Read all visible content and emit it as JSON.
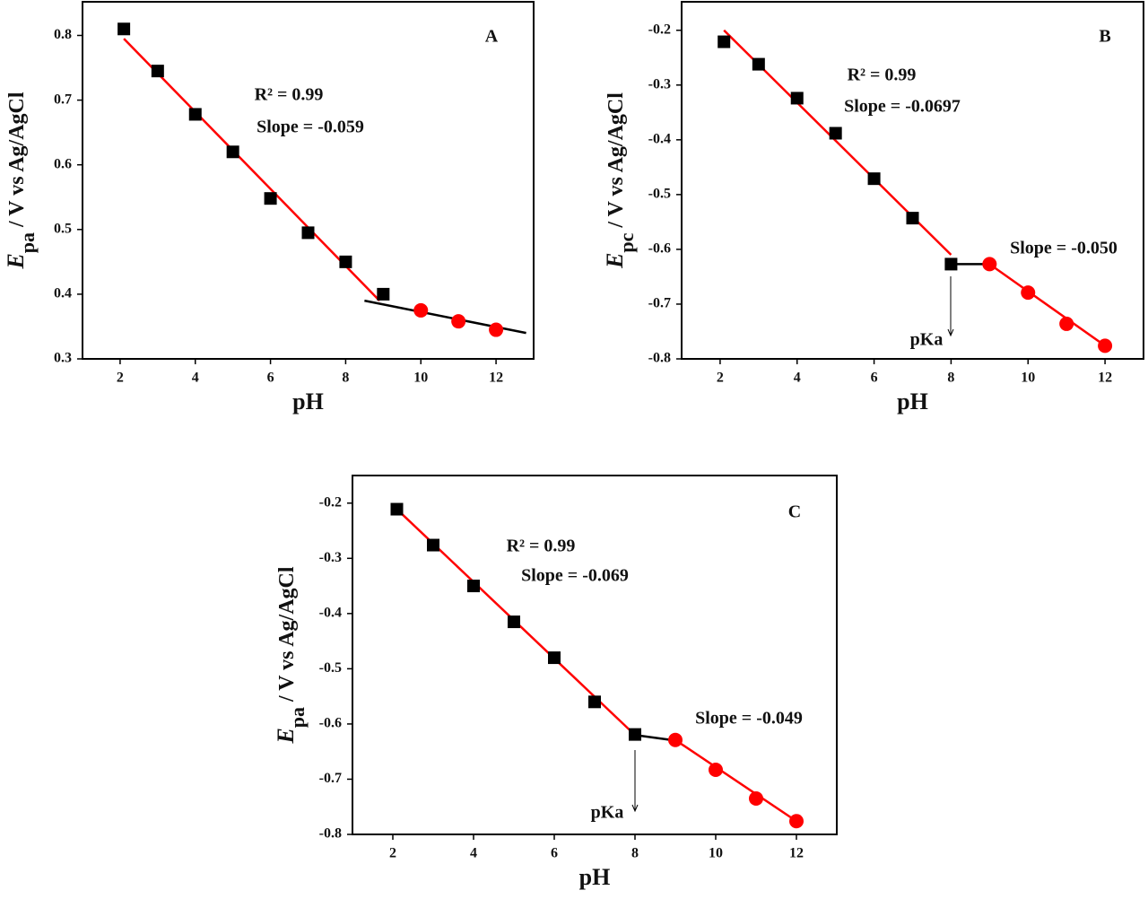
{
  "chart_data": [
    {
      "type": "scatter",
      "panel": "A",
      "x_label": "pH",
      "y_label": {
        "symbol": "E",
        "subscript": "pa",
        "text": " / V vs Ag/AgCl"
      },
      "xlim": [
        1,
        13
      ],
      "ylim": [
        0.3,
        0.852
      ],
      "xticks": [
        2,
        4,
        6,
        8,
        10,
        12
      ],
      "yticks": [
        0.3,
        0.4,
        0.5,
        0.6,
        0.7,
        0.8
      ],
      "series": [
        {
          "marker": "square",
          "color": "#000000",
          "x": [
            2.1,
            3,
            4,
            5,
            6,
            7,
            8,
            9
          ],
          "values": [
            0.81,
            0.745,
            0.678,
            0.62,
            0.548,
            0.495,
            0.45,
            0.4
          ]
        },
        {
          "marker": "circle",
          "color": "#ff0000",
          "x": [
            10,
            11,
            12
          ],
          "values": [
            0.375,
            0.358,
            0.345
          ]
        }
      ],
      "fits": [
        {
          "color": "#ff0000",
          "x": [
            2.1,
            8.9
          ],
          "values": [
            0.795,
            0.39
          ]
        },
        {
          "color": "#000000",
          "x": [
            8.5,
            12.8
          ],
          "values": [
            0.39,
            0.34
          ]
        }
      ],
      "annotations": [
        "R² = 0.99",
        "Slope = -0.059"
      ]
    },
    {
      "type": "scatter",
      "panel": "B",
      "x_label": "pH",
      "y_label": {
        "symbol": "E",
        "subscript": "pc",
        "text": " / V vs Ag/AgCl"
      },
      "xlim": [
        1,
        13
      ],
      "ylim": [
        -0.8,
        -0.148
      ],
      "xticks": [
        2,
        4,
        6,
        8,
        10,
        12
      ],
      "yticks": [
        -0.8,
        -0.7,
        -0.6,
        -0.5,
        -0.4,
        -0.3,
        -0.2
      ],
      "series": [
        {
          "marker": "square",
          "color": "#000000",
          "x": [
            2.1,
            3,
            4,
            5,
            6,
            7,
            8
          ],
          "values": [
            -0.221,
            -0.262,
            -0.324,
            -0.388,
            -0.471,
            -0.543,
            -0.627
          ]
        },
        {
          "marker": "circle",
          "color": "#ff0000",
          "x": [
            9,
            10,
            11,
            12
          ],
          "values": [
            -0.627,
            -0.679,
            -0.736,
            -0.776
          ]
        }
      ],
      "fits": [
        {
          "color": "#ff0000",
          "x": [
            2.1,
            8
          ],
          "values": [
            -0.2,
            -0.61
          ]
        },
        {
          "color": "#000000",
          "x": [
            8,
            9
          ],
          "values": [
            -0.627,
            -0.627
          ]
        },
        {
          "color": "#ff0000",
          "x": [
            9,
            12
          ],
          "values": [
            -0.627,
            -0.776
          ]
        }
      ],
      "annotations": [
        "R² = 0.99",
        "Slope = -0.0697",
        "Slope = -0.050",
        "pKa"
      ]
    },
    {
      "type": "scatter",
      "panel": "C",
      "x_label": "pH",
      "y_label": {
        "symbol": "E",
        "subscript": "pa",
        "text": " / V vs Ag/AgCl"
      },
      "xlim": [
        1,
        13
      ],
      "ylim": [
        -0.8,
        -0.15
      ],
      "xticks": [
        2,
        4,
        6,
        8,
        10,
        12
      ],
      "yticks": [
        -0.8,
        -0.7,
        -0.6,
        -0.5,
        -0.4,
        -0.3,
        -0.2
      ],
      "series": [
        {
          "marker": "square",
          "color": "#000000",
          "x": [
            2.1,
            3,
            4,
            5,
            6,
            7,
            8
          ],
          "values": [
            -0.211,
            -0.276,
            -0.35,
            -0.415,
            -0.48,
            -0.56,
            -0.619
          ]
        },
        {
          "marker": "circle",
          "color": "#ff0000",
          "x": [
            9,
            10,
            11,
            12
          ],
          "values": [
            -0.629,
            -0.683,
            -0.735,
            -0.776
          ]
        }
      ],
      "fits": [
        {
          "color": "#ff0000",
          "x": [
            2.1,
            8
          ],
          "values": [
            -0.211,
            -0.62
          ]
        },
        {
          "color": "#000000",
          "x": [
            8,
            9
          ],
          "values": [
            -0.62,
            -0.63
          ]
        },
        {
          "color": "#ff0000",
          "x": [
            9,
            12
          ],
          "values": [
            -0.629,
            -0.776
          ]
        }
      ],
      "annotations": [
        "R² = 0.99",
        "Slope = -0.069",
        "Slope = -0.049",
        "pKa"
      ]
    }
  ]
}
